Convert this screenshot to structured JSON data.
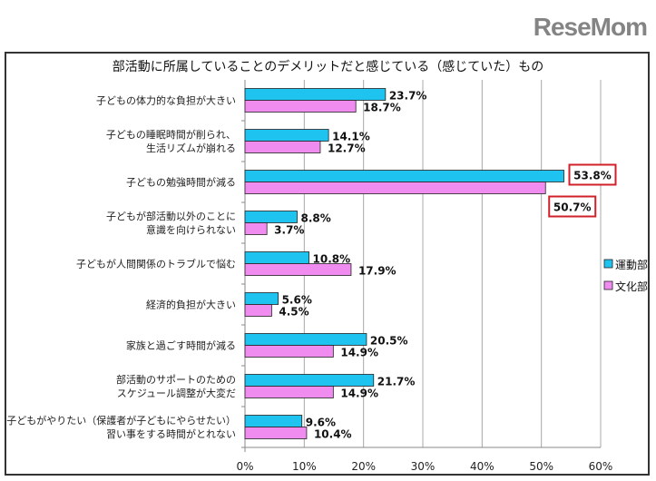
{
  "chart_data": {
    "type": "bar",
    "orientation": "horizontal",
    "title": "部活動に所属していることのデメリットだと感じている（感じていた）もの",
    "categories": [
      [
        "子どもの体力的な負担が大きい"
      ],
      [
        "子どもの睡眠時間が削られ、",
        "生活リズムが崩れる"
      ],
      [
        "子どもの勉強時間が減る"
      ],
      [
        "子どもが部活動以外のことに",
        "意識を向けられない"
      ],
      [
        "子どもが人間関係のトラブルで悩む"
      ],
      [
        "経済的負担が大きい"
      ],
      [
        "家族と過ごす時間が減る"
      ],
      [
        "部活動のサポートのための",
        "スケジュール調整が大変だ"
      ],
      [
        "子どもがやりたい（保護者が子どもにやらせたい）",
        "習い事をする時間がとれない"
      ]
    ],
    "series": [
      {
        "name": "運動部",
        "color": "#1EC3F0",
        "values": [
          23.7,
          14.1,
          53.8,
          8.8,
          10.8,
          5.6,
          20.5,
          21.7,
          9.6
        ]
      },
      {
        "name": "文化部",
        "color": "#F08CF0",
        "values": [
          18.7,
          12.7,
          50.7,
          3.7,
          17.9,
          4.5,
          14.9,
          14.9,
          10.4
        ]
      }
    ],
    "data_labels": [
      [
        "23.7%",
        "14.1%",
        "53.8%",
        "8.8%",
        "10.8%",
        "5.6%",
        "20.5%",
        "21.7%",
        "9.6%"
      ],
      [
        "18.7%",
        "12.7%",
        "50.7%",
        "3.7%",
        "17.9%",
        "4.5%",
        "14.9%",
        "14.9%",
        "10.4%"
      ]
    ],
    "highlighted_category": 2,
    "highlight_color": "#D0202A",
    "xlim": [
      0,
      60
    ],
    "xticks": [
      "0%",
      "10%",
      "20%",
      "30%",
      "40%",
      "50%",
      "60%"
    ],
    "xlabel": "",
    "ylabel": "",
    "grid": "vertical",
    "legend": "right"
  },
  "watermark": "ReseMom"
}
